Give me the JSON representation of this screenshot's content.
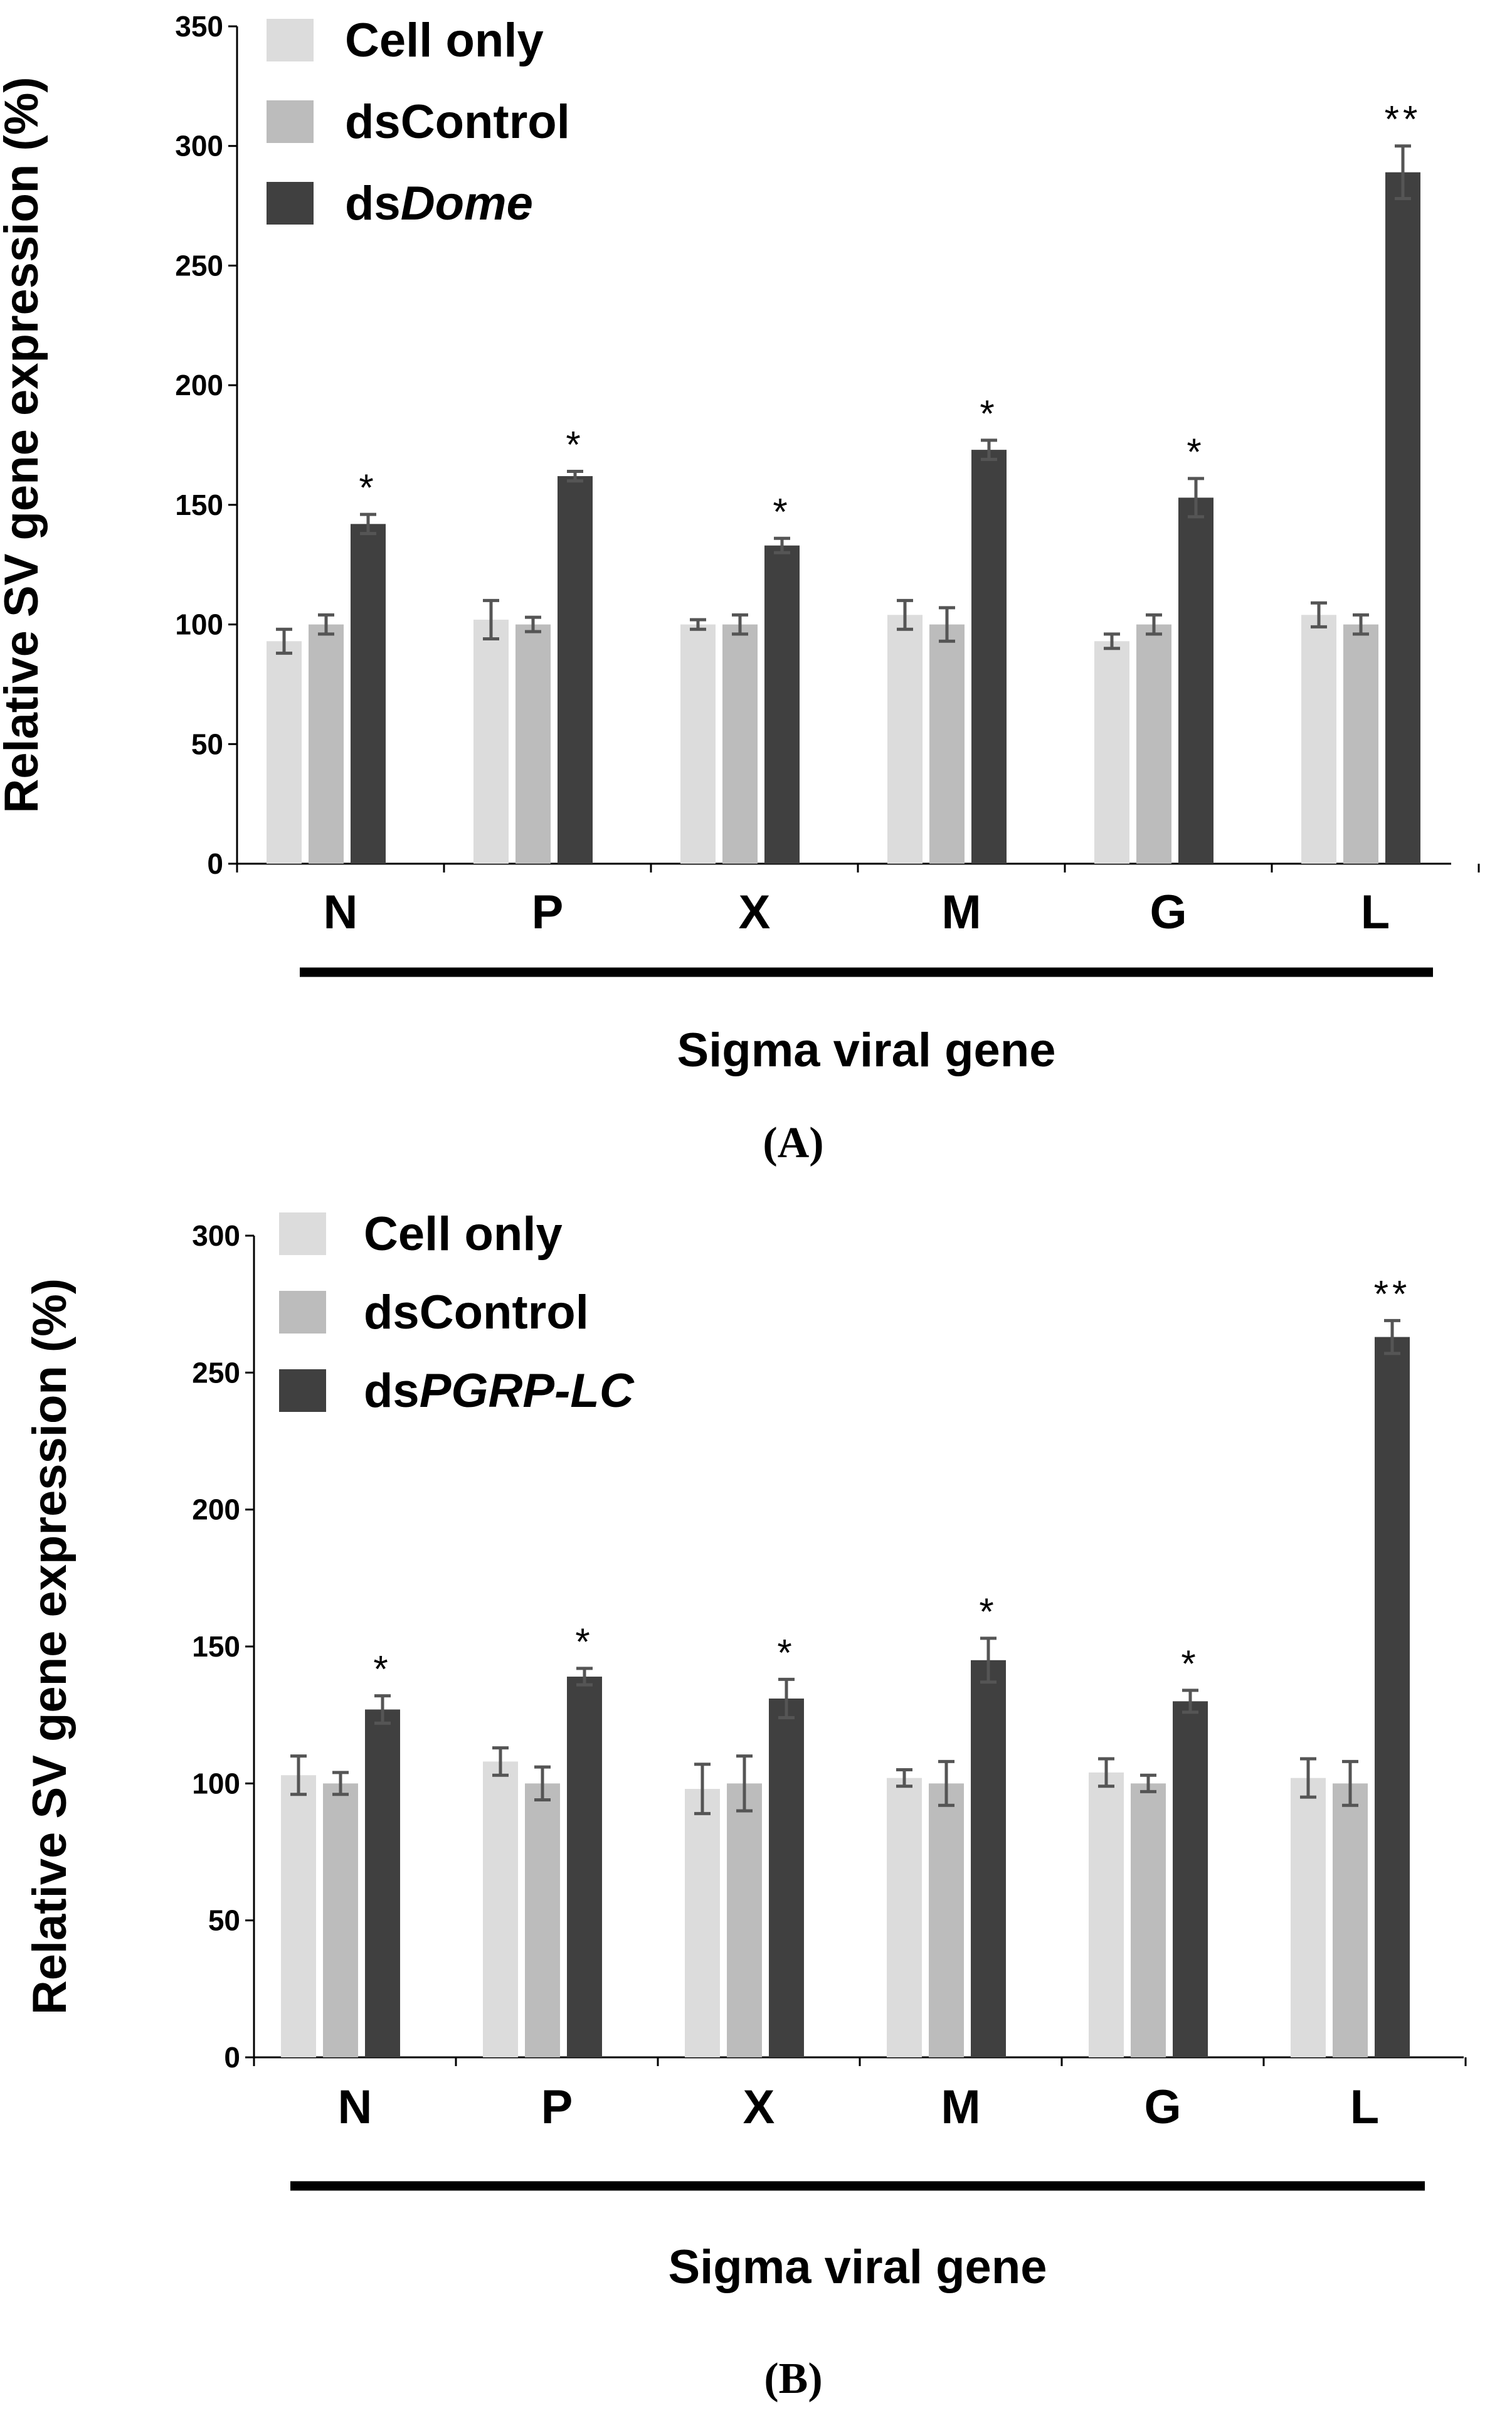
{
  "chart_data": [
    {
      "panel": "A",
      "type": "bar",
      "panel_label": "(A)",
      "title": "",
      "xlabel": "Sigma viral gene",
      "ylabel": "Relative SV gene expression (%)",
      "ylim": [
        0,
        350
      ],
      "yticks": [
        0,
        50,
        100,
        150,
        200,
        250,
        300,
        350
      ],
      "categories": [
        "N",
        "P",
        "X",
        "M",
        "G",
        "L"
      ],
      "series": [
        {
          "name": "Cell only",
          "prefix": "Cell only",
          "italic": "",
          "color": "#dcdcdc",
          "values": [
            93,
            102,
            100,
            104,
            93,
            104
          ],
          "errors": [
            5,
            8,
            2,
            6,
            3,
            5
          ]
        },
        {
          "name": "dsControl",
          "prefix": "dsControl",
          "italic": "",
          "color": "#bcbcbc",
          "values": [
            100,
            100,
            100,
            100,
            100,
            100
          ],
          "errors": [
            4,
            3,
            4,
            7,
            4,
            4
          ]
        },
        {
          "name": "dsDome",
          "prefix": "ds",
          "italic": "Dome",
          "color": "#404040",
          "values": [
            142,
            162,
            133,
            173,
            153,
            289
          ],
          "errors": [
            4,
            2,
            3,
            4,
            8,
            11
          ]
        }
      ],
      "significance": [
        "*",
        "*",
        "*",
        "*",
        "*",
        "**"
      ]
    },
    {
      "panel": "B",
      "type": "bar",
      "panel_label": "(B)",
      "title": "",
      "xlabel": "Sigma viral gene",
      "ylabel": "Relative SV gene expression (%)",
      "ylim": [
        0,
        300
      ],
      "yticks": [
        0,
        50,
        100,
        150,
        200,
        250,
        300
      ],
      "categories": [
        "N",
        "P",
        "X",
        "M",
        "G",
        "L"
      ],
      "series": [
        {
          "name": "Cell only",
          "prefix": "Cell only",
          "italic": "",
          "color": "#dcdcdc",
          "values": [
            103,
            108,
            98,
            102,
            104,
            102
          ],
          "errors": [
            7,
            5,
            9,
            3,
            5,
            7
          ]
        },
        {
          "name": "dsControl",
          "prefix": "dsControl",
          "italic": "",
          "color": "#bcbcbc",
          "values": [
            100,
            100,
            100,
            100,
            100,
            100
          ],
          "errors": [
            4,
            6,
            10,
            8,
            3,
            8
          ]
        },
        {
          "name": "dsPGRP-LC",
          "prefix": "ds",
          "italic": "PGRP-LC",
          "color": "#404040",
          "values": [
            127,
            139,
            131,
            145,
            130,
            263
          ],
          "errors": [
            5,
            3,
            7,
            8,
            4,
            6
          ]
        }
      ],
      "significance": [
        "*",
        "*",
        "*",
        "*",
        "*",
        "**"
      ]
    }
  ]
}
